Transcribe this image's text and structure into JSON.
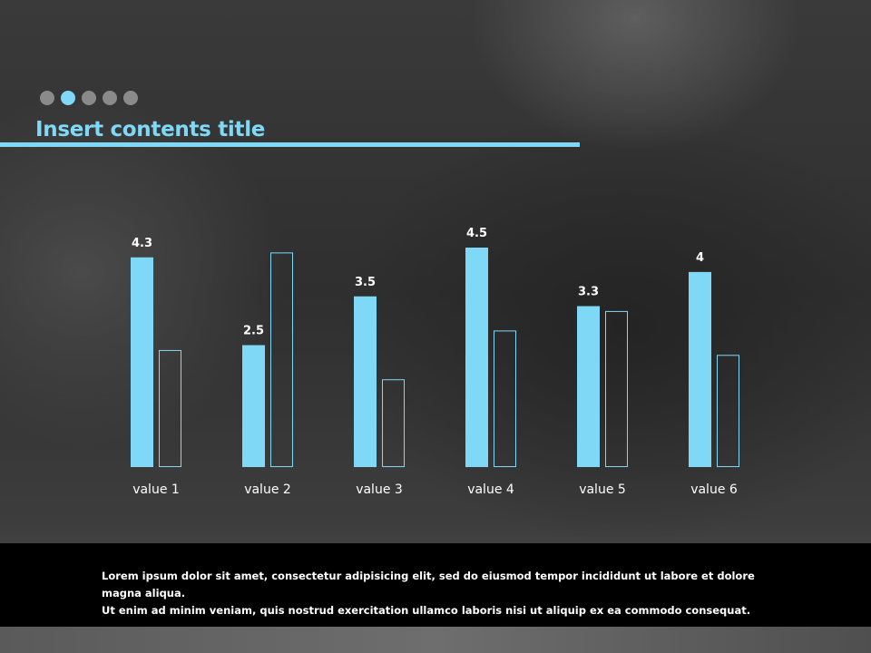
{
  "slide": {
    "title": "Insert contents title",
    "pager": {
      "count": 5,
      "active_index": 1
    },
    "body_lines": [
      "Lorem ipsum dolor sit amet, consectetur adipisicing elit, sed do eiusmod tempor incididunt ut labore et dolore magna aliqua.",
      "Ut enim ad minim veniam, quis nostrud exercitation ullamco laboris nisi ut aliquip ex ea commodo consequat."
    ]
  },
  "colors": {
    "accent": "#7fd8f6",
    "outline": "#7fd8f6",
    "footer_bg": "#000000"
  },
  "chart_data": {
    "type": "bar",
    "categories": [
      "value 1",
      "value 2",
      "value 3",
      "value 4",
      "value 5",
      "value 6"
    ],
    "series": [
      {
        "values": [
          4.3,
          2.5,
          3.5,
          4.5,
          3.3,
          4.0
        ],
        "style": "filled",
        "labels": [
          "4.3",
          "2.5",
          "3.5",
          "4.5",
          "3.3",
          "4"
        ]
      },
      {
        "values": [
          2.4,
          4.4,
          1.8,
          2.8,
          3.2,
          2.3
        ],
        "style": "outline"
      }
    ],
    "ylim": [
      0,
      4.5
    ],
    "grid": false,
    "legend": "none"
  }
}
